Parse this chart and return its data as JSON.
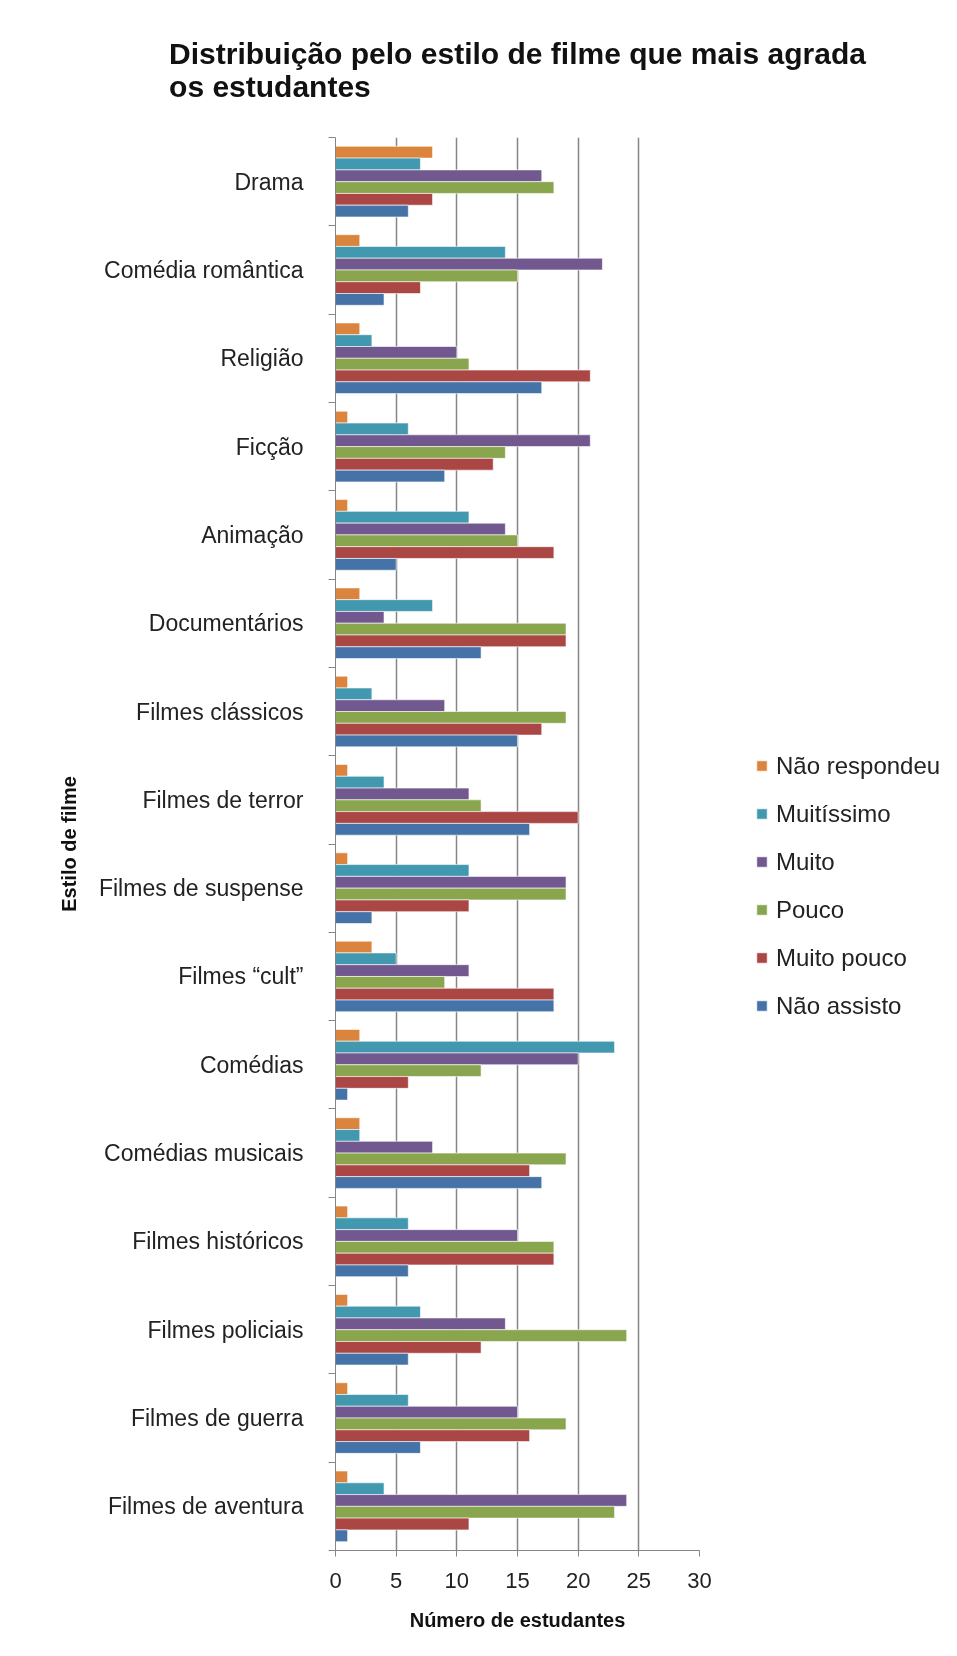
{
  "chart_data": {
    "type": "bar",
    "orientation": "horizontal",
    "title": "Distribuição pelo estilo de filme que mais agrada os estudantes",
    "xlabel": "Número de estudantes",
    "ylabel": "Estilo de filme",
    "categories": [
      "Drama",
      "Comédia romântica",
      "Religião",
      "Ficção",
      "Animação",
      "Documentários",
      "Filmes clássicos",
      "Filmes de terror",
      "Filmes de suspense",
      "Filmes “cult”",
      "Comédias",
      "Comédias musicais",
      "Filmes históricos",
      "Filmes policiais",
      "Filmes de guerra",
      "Filmes de aventura"
    ],
    "series": [
      {
        "name": "Não respondeu",
        "color": "#db843d",
        "values": [
          8,
          2,
          2,
          1,
          1,
          2,
          1,
          1,
          1,
          3,
          2,
          2,
          1,
          1,
          1,
          1
        ]
      },
      {
        "name": "Muitíssimo",
        "color": "#4198af",
        "values": [
          7,
          14,
          3,
          6,
          11,
          8,
          3,
          4,
          11,
          5,
          23,
          2,
          6,
          7,
          6,
          4
        ]
      },
      {
        "name": "Muito",
        "color": "#71588f",
        "values": [
          17,
          22,
          10,
          21,
          14,
          4,
          9,
          11,
          19,
          11,
          20,
          8,
          15,
          14,
          15,
          24
        ]
      },
      {
        "name": "Pouco",
        "color": "#89a54e",
        "values": [
          18,
          15,
          11,
          14,
          15,
          19,
          19,
          12,
          19,
          9,
          12,
          19,
          18,
          24,
          19,
          23
        ]
      },
      {
        "name": "Muito pouco",
        "color": "#aa4643",
        "values": [
          8,
          7,
          21,
          13,
          18,
          19,
          17,
          20,
          11,
          18,
          6,
          16,
          18,
          12,
          16,
          11
        ]
      },
      {
        "name": "Não assisto",
        "color": "#4572a7",
        "values": [
          6,
          4,
          17,
          9,
          5,
          12,
          15,
          16,
          3,
          18,
          1,
          17,
          6,
          6,
          7,
          1
        ]
      }
    ],
    "xlim": [
      0,
      30
    ],
    "xticks": [
      0,
      5,
      10,
      15,
      20,
      25,
      30
    ],
    "grid": "x",
    "legend": "right"
  }
}
